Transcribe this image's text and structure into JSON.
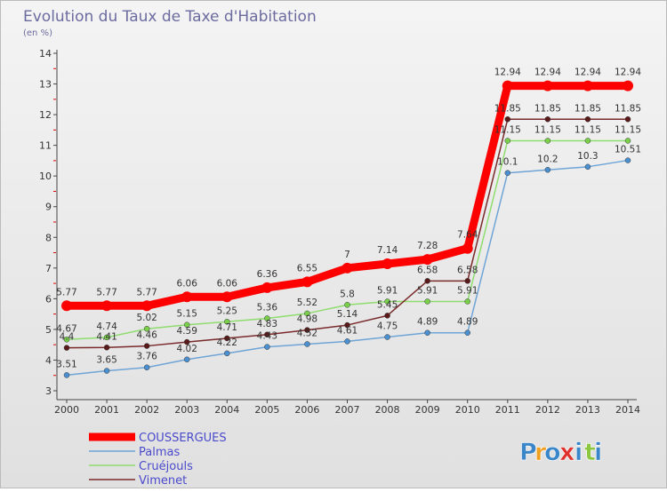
{
  "title": "Evolution du Taux de Taxe d'Habitation",
  "subtitle": "(en %)",
  "brand": {
    "letters": [
      "P",
      "r",
      "o",
      "x",
      "i",
      "t",
      "i"
    ],
    "colors": [
      "#3a86c8",
      "#f0a020",
      "#3a86c8",
      "#e0322d",
      "#3a86c8",
      "#8cc63f",
      "#3a86c8"
    ]
  },
  "colors": {
    "bg_top": "#f4f4f4",
    "bg_bottom": "#e0e0e0",
    "title": "#6b6b9f",
    "axis": "#444444",
    "tick_red": "#dd0000"
  },
  "chart_data": {
    "type": "line",
    "title": "Evolution du Taux de Taxe d'Habitation",
    "ylabel": "(en %)",
    "xlabel": "",
    "ylim": [
      3,
      14
    ],
    "yticks": [
      3,
      4,
      5,
      6,
      7,
      8,
      9,
      10,
      11,
      12,
      13,
      14
    ],
    "grid": false,
    "legend_position": "bottom-left",
    "x": [
      "2000",
      "2001",
      "2002",
      "2003",
      "2004",
      "2005",
      "2006",
      "2007",
      "2008",
      "2009",
      "2010",
      "2011",
      "2012",
      "2013",
      "2014"
    ],
    "series": [
      {
        "name": "COUSSERGUES",
        "color": "#ff0000",
        "emphasis": true,
        "values": [
          5.77,
          5.77,
          5.77,
          6.06,
          6.06,
          6.36,
          6.55,
          7,
          7.14,
          7.28,
          7.64,
          12.94,
          12.94,
          12.94,
          12.94
        ],
        "labels": [
          "5.77",
          "5.77",
          "5.77",
          "6.06",
          "6.06",
          "6.36",
          "6.55",
          "7",
          "7.14",
          "7.28",
          "7.64",
          "12.94",
          "12.94",
          "12.94",
          "12.94"
        ]
      },
      {
        "name": "Palmas",
        "color": "#6fa4d6",
        "marker": "#4a8fd0",
        "values": [
          3.51,
          3.65,
          3.76,
          4.02,
          4.22,
          4.43,
          4.52,
          4.61,
          4.75,
          4.89,
          4.89,
          10.1,
          10.2,
          10.3,
          10.51
        ],
        "labels": [
          "3.51",
          "3.65",
          "3.76",
          "4.02",
          "4.22",
          "4.43",
          "4.52",
          "4.61",
          "4.75",
          "4.89",
          "4.89",
          "10.1",
          "10.2",
          "10.3",
          "10.51"
        ]
      },
      {
        "name": "Cruéjouls",
        "color": "#8fdc6f",
        "marker": "#7ad04a",
        "values": [
          4.67,
          4.74,
          5.02,
          5.15,
          5.25,
          5.36,
          5.52,
          5.8,
          5.91,
          5.91,
          5.91,
          11.15,
          11.15,
          11.15,
          11.15
        ],
        "labels": [
          "4.67",
          "4.74",
          "5.02",
          "5.15",
          "5.25",
          "5.36",
          "5.52",
          "5.8",
          "5.91",
          "5.91",
          "5.91",
          "11.15",
          "11.15",
          "11.15",
          "11.15"
        ]
      },
      {
        "name": "Vimenet",
        "color": "#7a2a2a",
        "marker": "#5a1a1a",
        "values": [
          4.4,
          4.41,
          4.46,
          4.59,
          4.71,
          4.83,
          4.98,
          5.14,
          5.45,
          6.58,
          6.58,
          11.85,
          11.85,
          11.85,
          11.85
        ],
        "labels": [
          "4.4",
          "4.41",
          "4.46",
          "4.59",
          "4.71",
          "4.83",
          "4.98",
          "5.14",
          "5.45",
          "6.58",
          "6.58",
          "11.85",
          "11.85",
          "11.85",
          "11.85"
        ]
      }
    ]
  }
}
